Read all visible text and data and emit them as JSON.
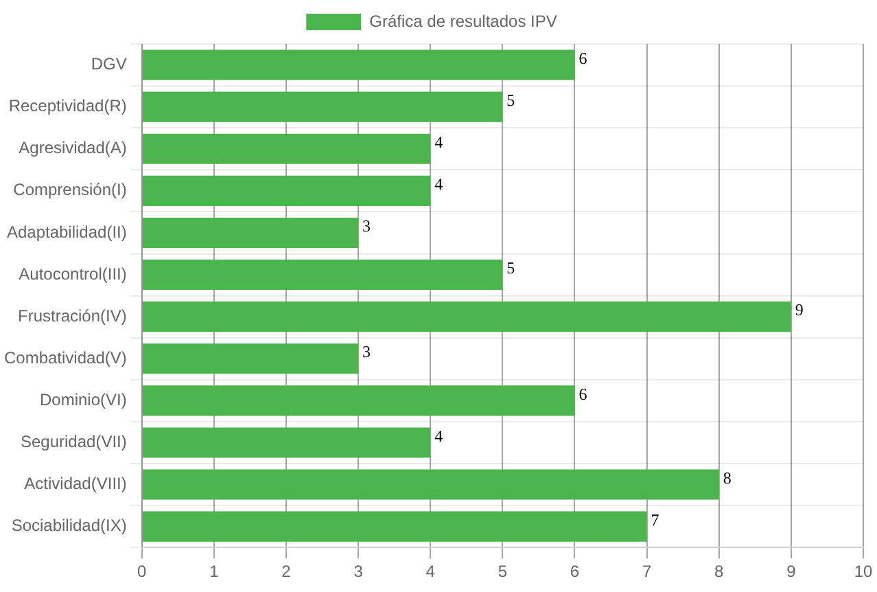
{
  "chart_data": {
    "type": "bar",
    "orientation": "horizontal",
    "categories": [
      "DGV",
      "Receptividad(R)",
      "Agresividad(A)",
      "Comprensión(I)",
      "Adaptabilidad(II)",
      "Autocontrol(III)",
      "Frustración(IV)",
      "Combatividad(V)",
      "Dominio(VI)",
      "Seguridad(VII)",
      "Actividad(VIII)",
      "Sociabilidad(IX)"
    ],
    "series": [
      {
        "name": "Gráfica de resultados IPV",
        "color": "#4cb44c",
        "values": [
          6,
          5,
          4,
          4,
          3,
          5,
          9,
          3,
          6,
          4,
          8,
          7
        ]
      }
    ],
    "xlim": [
      0,
      10
    ],
    "xticks": [
      0,
      1,
      2,
      3,
      4,
      5,
      6,
      7,
      8,
      9,
      10
    ],
    "grid": true,
    "legend": "top",
    "data_labels": true
  }
}
